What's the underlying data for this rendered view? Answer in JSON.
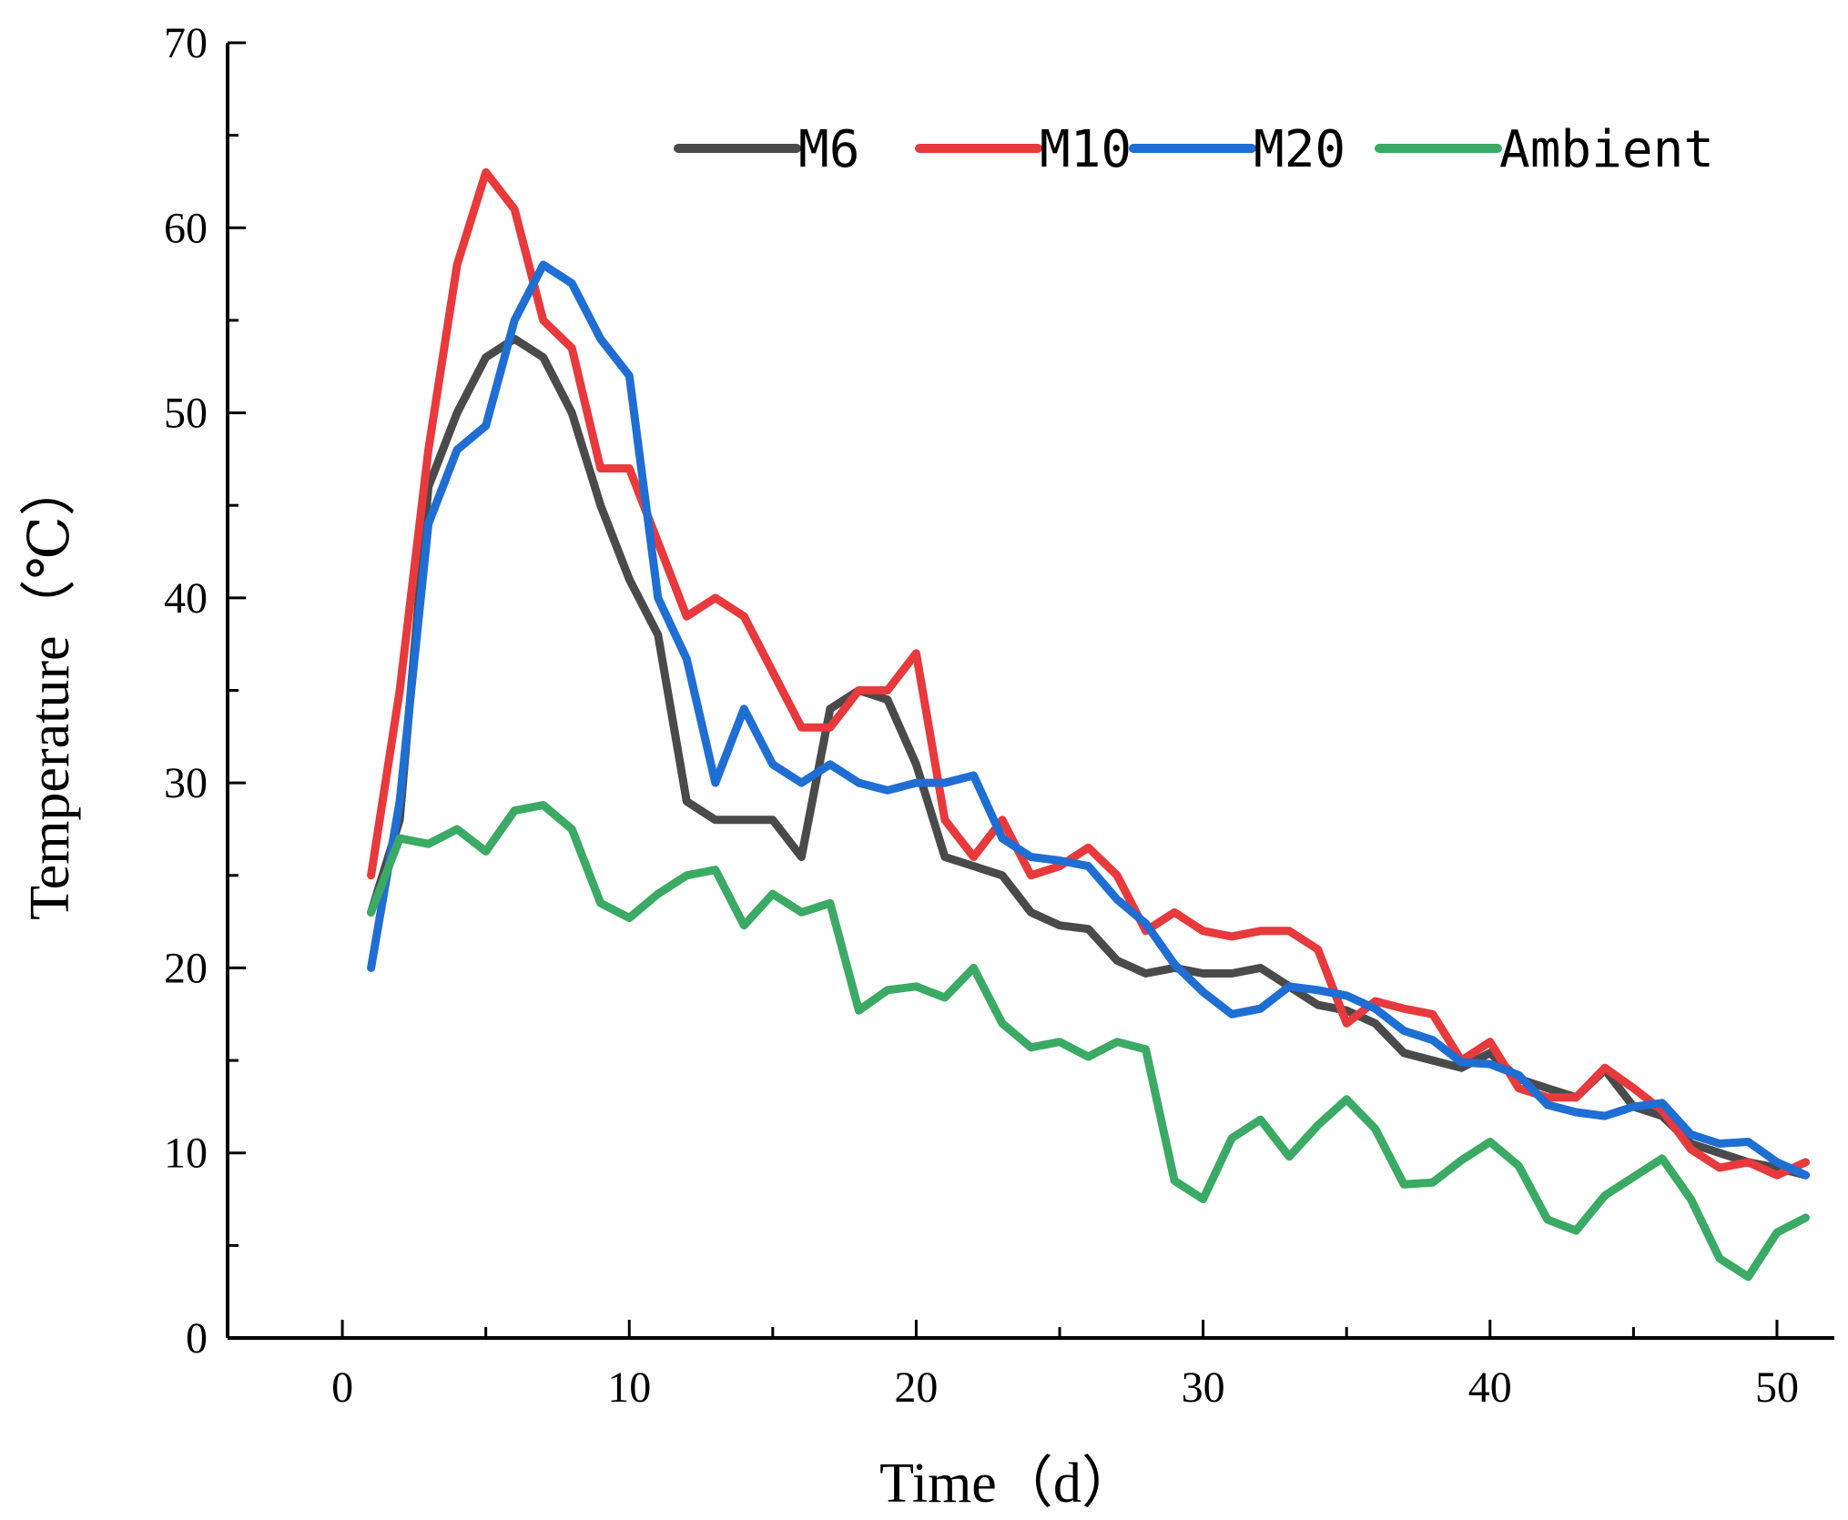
{
  "chart_data": {
    "type": "line",
    "title": "",
    "xlabel": "Time（d）",
    "ylabel": "Temperature（℃）",
    "xlim": [
      -4,
      52
    ],
    "ylim": [
      0,
      70
    ],
    "xticks": [
      0,
      10,
      20,
      30,
      40,
      50
    ],
    "yticks": [
      0,
      10,
      20,
      30,
      40,
      50,
      60,
      70
    ],
    "xtick_labels": [
      "0",
      "10",
      "20",
      "30",
      "40",
      "50"
    ],
    "ytick_labels": [
      "0",
      "10",
      "20",
      "30",
      "40",
      "50",
      "60",
      "70"
    ],
    "grid": false,
    "legend_position": "top-right",
    "x": [
      1,
      2,
      3,
      4,
      5,
      6,
      7,
      8,
      9,
      10,
      11,
      12,
      13,
      14,
      15,
      16,
      17,
      18,
      19,
      20,
      21,
      22,
      23,
      24,
      25,
      26,
      27,
      28,
      29,
      30,
      31,
      32,
      33,
      34,
      35,
      36,
      37,
      38,
      39,
      40,
      41,
      42,
      43,
      44,
      45,
      46,
      47,
      48,
      49,
      50,
      51
    ],
    "series": [
      {
        "name": "M6",
        "color": "#4a4a4a",
        "values": [
          23,
          28,
          46,
          50,
          53,
          54,
          53,
          50,
          45,
          41,
          38,
          29,
          28,
          28,
          28,
          26,
          34,
          35,
          34.5,
          31,
          26,
          25.5,
          25,
          23,
          22.3,
          22.1,
          20.4,
          19.7,
          20,
          19.7,
          19.7,
          20,
          19,
          18,
          17.7,
          17,
          15.4,
          15,
          14.6,
          15.4,
          14,
          13.5,
          13,
          14.5,
          12.5,
          12,
          10.5,
          10,
          9.5,
          9.2,
          8.8
        ]
      },
      {
        "name": "M10",
        "color": "#e8393c",
        "values": [
          25,
          35,
          48,
          58,
          63,
          61,
          55,
          53.5,
          47,
          47,
          43,
          39,
          40,
          39,
          36,
          33,
          33,
          35,
          35,
          37,
          28,
          26,
          28,
          25,
          25.5,
          26.5,
          25,
          22,
          23,
          22,
          21.7,
          22,
          22,
          21,
          17,
          18.2,
          17.8,
          17.5,
          15,
          16,
          13.5,
          13,
          13,
          14.6,
          13.5,
          12.3,
          10.2,
          9.2,
          9.5,
          8.8,
          9.5
        ]
      },
      {
        "name": "M20",
        "color": "#1f6ed4",
        "values": [
          20,
          29,
          44,
          48,
          49.3,
          55,
          58,
          57,
          54,
          52,
          40,
          36.7,
          30,
          34,
          31,
          30,
          31,
          30,
          29.6,
          30,
          30,
          30.4,
          27,
          26,
          25.8,
          25.5,
          23.7,
          22.4,
          20.2,
          18.7,
          17.5,
          17.8,
          19,
          18.8,
          18.5,
          17.8,
          16.6,
          16.1,
          14.9,
          14.8,
          14.2,
          12.6,
          12.2,
          12,
          12.5,
          12.7,
          11,
          10.5,
          10.6,
          9.5,
          8.8
        ]
      },
      {
        "name": "Ambient",
        "color": "#3aaa64",
        "values": [
          23,
          27,
          26.7,
          27.5,
          26.3,
          28.5,
          28.8,
          27.5,
          23.5,
          22.7,
          24,
          25,
          25.3,
          22.3,
          24,
          23,
          23.5,
          17.7,
          18.8,
          19,
          18.4,
          20,
          17,
          15.7,
          16,
          15.2,
          16,
          15.6,
          8.5,
          7.5,
          10.8,
          11.8,
          9.8,
          11.5,
          12.9,
          11.3,
          8.3,
          8.4,
          9.6,
          10.6,
          9.3,
          6.4,
          5.8,
          7.7,
          8.7,
          9.7,
          7.5,
          4.3,
          3.3,
          5.7,
          6.5
        ]
      }
    ]
  }
}
